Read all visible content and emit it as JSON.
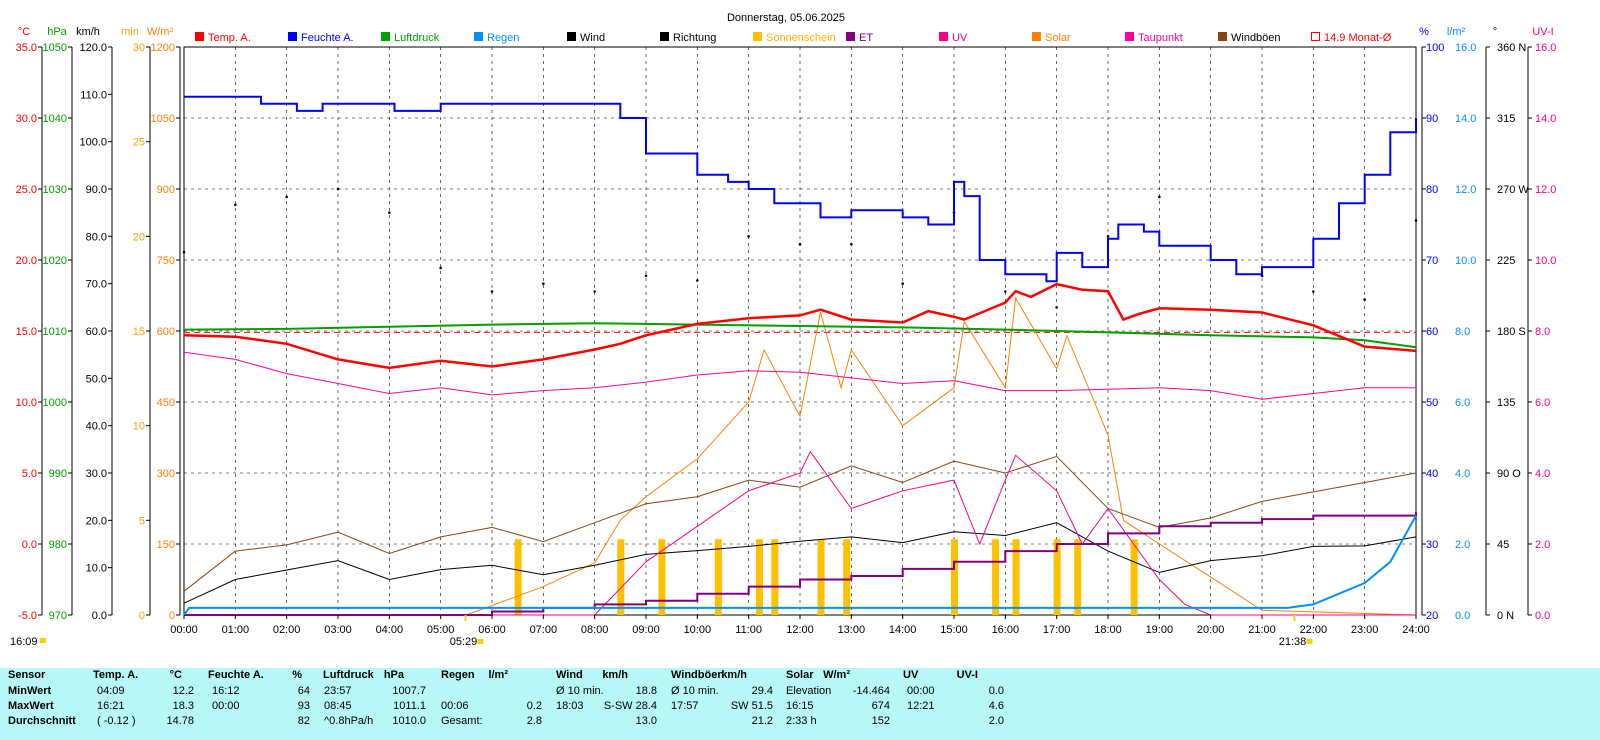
{
  "title": "Donnerstag, 05.06.2025",
  "legend": [
    {
      "label": "Temp. A.",
      "color": "#ff0000",
      "box": "filled"
    },
    {
      "label": "Feuchte A.",
      "color": "#0000ff",
      "box": "filled"
    },
    {
      "label": "Luftdruck",
      "color": "#00a000",
      "box": "filled"
    },
    {
      "label": "Regen",
      "color": "#0090ff",
      "box": "filled"
    },
    {
      "label": "Wind",
      "color": "#000000",
      "box": "filled"
    },
    {
      "label": "Richtung",
      "color": "#000000",
      "box": "filled"
    },
    {
      "label": "Sonnenschein",
      "color": "#ffc000",
      "box": "filled"
    },
    {
      "label": "ET",
      "color": "#800080",
      "box": "filled"
    },
    {
      "label": "UV",
      "color": "#ff0080",
      "box": "filled"
    },
    {
      "label": "Solar",
      "color": "#ff8000",
      "box": "filled"
    },
    {
      "label": "Taupunkt",
      "color": "#ff00a0",
      "box": "filled"
    },
    {
      "label": "Windböen",
      "color": "#8b4513",
      "box": "filled"
    },
    {
      "label": "14.9 Monat-Ø",
      "color": "#ff0000",
      "box": "outline"
    }
  ],
  "colors": {
    "temp": "#ff0000",
    "humidity": "#0000ff",
    "pressure": "#00a000",
    "rain": "#0090ff",
    "wind": "#000000",
    "gust": "#8b4513",
    "sun": "#ffc000",
    "et": "#800080",
    "uv": "#ff0080",
    "solar": "#ff8000",
    "dew": "#ff00a0",
    "grid": "#000000",
    "stats_bg": "#b8f7f7"
  },
  "left_axes": [
    {
      "unit": "°C",
      "color": "#ff0000",
      "ticks": [
        "35.0",
        "30.0",
        "25.0",
        "20.0",
        "15.0",
        "10.0",
        "5.0",
        "0.0",
        "-5.0"
      ]
    },
    {
      "unit": "hPa",
      "color": "#00a000",
      "ticks": [
        "1050",
        "1040",
        "1030",
        "1020",
        "1010",
        "1000",
        "990",
        "980",
        "970"
      ]
    },
    {
      "unit": "km/h",
      "color": "#000000",
      "ticks": [
        "120.0",
        "110.0",
        "100.0",
        "90.0",
        "80.0",
        "70.0",
        "60.0",
        "50.0",
        "40.0",
        "30.0",
        "20.0",
        "10.0",
        "0.0"
      ]
    },
    {
      "unit": "min",
      "color": "#ffa000",
      "ticks": [
        "30",
        "25",
        "20",
        "15",
        "10",
        "5",
        "0"
      ]
    },
    {
      "unit": "W/m²",
      "color": "#ff8000",
      "ticks": [
        "1200",
        "1050",
        "900",
        "750",
        "600",
        "450",
        "300",
        "150",
        "0"
      ]
    }
  ],
  "right_axes": [
    {
      "unit": "%",
      "color": "#0000ff",
      "ticks": [
        "100",
        "90",
        "80",
        "70",
        "60",
        "50",
        "40",
        "30",
        "20"
      ]
    },
    {
      "unit": "l/m²",
      "color": "#0090ff",
      "ticks": [
        "16.0",
        "14.0",
        "12.0",
        "10.0",
        "8.0",
        "6.0",
        "4.0",
        "2.0",
        "0.0"
      ]
    },
    {
      "unit": "°",
      "color": "#000000",
      "ticks": [
        "360 N",
        "315",
        "270 W",
        "225",
        "180 S",
        "135",
        "90 O",
        "45",
        "0 N"
      ]
    },
    {
      "unit": "UV-I",
      "color": "#ff0080",
      "ticks": [
        "16.0",
        "14.0",
        "12.0",
        "10.0",
        "8.0",
        "6.0",
        "4.0",
        "2.0",
        "0.0"
      ]
    }
  ],
  "x_ticks": [
    "00:00",
    "01:00",
    "02:00",
    "03:00",
    "04:00",
    "05:00",
    "06:00",
    "07:00",
    "08:00",
    "09:00",
    "10:00",
    "11:00",
    "12:00",
    "13:00",
    "14:00",
    "15:00",
    "16:00",
    "17:00",
    "18:00",
    "19:00",
    "20:00",
    "21:00",
    "22:00",
    "23:00",
    "24:00"
  ],
  "sunrise": "05:29",
  "sunset": "21:38",
  "last_update": "16:09",
  "chart_data": {
    "type": "line",
    "title": "Donnerstag, 05.06.2025",
    "x_range": [
      "00:00",
      "24:00"
    ],
    "grid": true,
    "legend_position": "top",
    "monthly_mean_temp": 14.9,
    "series": [
      {
        "name": "Temp. A.",
        "unit": "°C",
        "x": [
          0,
          1,
          2,
          3,
          4,
          5,
          6,
          7,
          8,
          8.5,
          9,
          10,
          11,
          12,
          12.4,
          13,
          14,
          14.5,
          15,
          15.2,
          16,
          16.2,
          16.5,
          17,
          17.5,
          18,
          18.3,
          18.6,
          19,
          20,
          21,
          22,
          23,
          24
        ],
        "y": [
          14.7,
          14.6,
          14.1,
          13.0,
          12.4,
          12.9,
          12.5,
          13.0,
          13.7,
          14.1,
          14.7,
          15.5,
          15.9,
          16.1,
          16.5,
          15.8,
          15.6,
          16.4,
          16.0,
          15.8,
          17.0,
          17.8,
          17.4,
          18.3,
          17.9,
          17.8,
          15.8,
          16.2,
          16.6,
          16.5,
          16.3,
          15.4,
          13.9,
          13.6
        ]
      },
      {
        "name": "Feuchte A.",
        "unit": "%",
        "x": [
          0,
          1,
          1.5,
          2,
          2.2,
          2.7,
          3,
          4,
          4.1,
          5,
          6,
          7,
          8,
          8.5,
          9,
          10,
          10.6,
          11,
          11.5,
          12,
          12.4,
          13,
          14,
          14.5,
          15,
          15.2,
          15.5,
          16,
          16.3,
          16.8,
          17,
          17.5,
          18,
          18.2,
          18.7,
          19,
          20,
          20.5,
          21,
          22,
          22.5,
          23,
          23.5,
          24
        ],
        "y": [
          93,
          93,
          92,
          92,
          91,
          92,
          92,
          92,
          91,
          92,
          92,
          92,
          92,
          90,
          85,
          82,
          81,
          80,
          78,
          78,
          76,
          77,
          76,
          75,
          81,
          79,
          70,
          68,
          68,
          67,
          71,
          69,
          73,
          75,
          74,
          72,
          70,
          68,
          69,
          73,
          78,
          82,
          88,
          90
        ]
      },
      {
        "name": "Luftdruck",
        "unit": "hPa",
        "x": [
          0,
          2,
          4,
          6,
          8,
          10,
          12,
          14,
          16,
          18,
          20,
          22,
          23,
          24
        ],
        "y": [
          1010.2,
          1010.3,
          1010.6,
          1010.9,
          1011.1,
          1010.9,
          1010.7,
          1010.5,
          1010.2,
          1009.8,
          1009.4,
          1009.1,
          1008.7,
          1007.7
        ]
      },
      {
        "name": "Regen",
        "unit": "l/m²",
        "x": [
          0,
          0.1,
          21.5,
          22,
          22.5,
          23,
          23.5,
          24
        ],
        "y": [
          0,
          0.2,
          0.2,
          0.3,
          0.6,
          0.9,
          1.5,
          2.8
        ]
      },
      {
        "name": "Wind",
        "unit": "km/h",
        "x": [
          0,
          1,
          2,
          3,
          4,
          5,
          6,
          7,
          8,
          9,
          10,
          11,
          12,
          13,
          14,
          15,
          16,
          17,
          18,
          19,
          20,
          21,
          22,
          23,
          24
        ],
        "y": [
          2.5,
          7.5,
          9.5,
          11.5,
          7.5,
          9.6,
          10.5,
          8.5,
          10.5,
          12.8,
          13.6,
          14.5,
          15.6,
          16.5,
          15.3,
          17.6,
          16.8,
          19.5,
          13.5,
          9.0,
          11.5,
          12.5,
          14.5,
          14.6,
          16.5
        ]
      },
      {
        "name": "Windböen",
        "unit": "km/h",
        "x": [
          0,
          1,
          2,
          3,
          4,
          5,
          6,
          7,
          8,
          9,
          10,
          11,
          12,
          13,
          14,
          15,
          16,
          17,
          18,
          19,
          20,
          21,
          22,
          23,
          24
        ],
        "y": [
          5.0,
          13.5,
          14.8,
          17.5,
          13.0,
          16.5,
          18.5,
          15.5,
          19.5,
          23.5,
          25.0,
          28.5,
          27.0,
          31.5,
          28.0,
          32.5,
          30.0,
          33.5,
          22.5,
          18.5,
          20.5,
          24.0,
          26.0,
          28.0,
          30.0
        ]
      },
      {
        "name": "Richtung",
        "unit": "°",
        "x": [
          0,
          1,
          2,
          3,
          4,
          5,
          6,
          7,
          8,
          9,
          10,
          11,
          12,
          13,
          14,
          15,
          16,
          17,
          18,
          19,
          20,
          21,
          22,
          23,
          24
        ],
        "y": [
          230,
          260,
          265,
          270,
          255,
          220,
          205,
          210,
          205,
          215,
          212,
          240,
          235,
          235,
          210,
          255,
          205,
          195,
          240,
          265,
          225,
          215,
          205,
          200,
          250
        ]
      },
      {
        "name": "Sonnenschein",
        "unit": "min",
        "x": [
          6.5,
          8.5,
          9.3,
          10.4,
          11.2,
          11.5,
          12.4,
          12.9,
          15.0,
          15.8,
          16.2,
          17.0,
          17.4,
          18.5
        ],
        "y": [
          4,
          4,
          4,
          4,
          4,
          4,
          4,
          4,
          4,
          4,
          4,
          4,
          4,
          4
        ]
      },
      {
        "name": "ET",
        "unit": "l/m²",
        "x": [
          0,
          5,
          6,
          7,
          8,
          9,
          10,
          11,
          12,
          13,
          14,
          15,
          16,
          17,
          18,
          19,
          20,
          21,
          22,
          23,
          24
        ],
        "y": [
          0,
          0,
          0.1,
          0.2,
          0.3,
          0.4,
          0.6,
          0.8,
          1.0,
          1.1,
          1.3,
          1.5,
          1.8,
          2.0,
          2.3,
          2.5,
          2.6,
          2.7,
          2.8,
          2.8,
          2.9
        ]
      },
      {
        "name": "UV",
        "unit": "UV-I",
        "x": [
          0,
          8,
          9,
          10,
          11,
          12,
          12.2,
          13,
          14,
          15,
          15.5,
          16,
          16.2,
          17,
          17.5,
          18,
          19,
          19.5,
          20,
          24
        ],
        "y": [
          0,
          0,
          1.5,
          2.5,
          3.5,
          4.0,
          4.6,
          3.0,
          3.5,
          3.8,
          2.0,
          3.8,
          4.5,
          3.5,
          2.0,
          3.0,
          1.0,
          0.3,
          0,
          0
        ]
      },
      {
        "name": "Solar",
        "unit": "W/m²",
        "x": [
          0,
          5.5,
          6,
          7,
          8,
          8.5,
          9,
          10,
          11,
          11.3,
          12,
          12.4,
          12.8,
          13,
          14,
          15,
          15.2,
          16,
          16.2,
          17,
          17.2,
          18,
          18.3,
          19,
          20,
          21,
          24
        ],
        "y": [
          0,
          0,
          20,
          60,
          110,
          200,
          250,
          330,
          450,
          560,
          420,
          640,
          480,
          560,
          400,
          480,
          620,
          480,
          670,
          520,
          590,
          380,
          200,
          150,
          80,
          10,
          0
        ]
      },
      {
        "name": "Taupunkt",
        "unit": "°C",
        "x": [
          0,
          1,
          2,
          3,
          4,
          5,
          6,
          7,
          8,
          9,
          10,
          11,
          12,
          13,
          14,
          15,
          16,
          17,
          18,
          19,
          20,
          21,
          22,
          23,
          24
        ],
        "y": [
          13.5,
          13.0,
          12.0,
          11.3,
          10.6,
          11.0,
          10.5,
          10.8,
          11.0,
          11.4,
          11.9,
          12.2,
          12.1,
          11.7,
          11.3,
          11.5,
          10.8,
          10.8,
          10.9,
          11.0,
          10.8,
          10.2,
          10.6,
          11.0,
          11.0
        ]
      }
    ]
  },
  "stats": {
    "headers": [
      "Sensor",
      "Temp. A.",
      "°C",
      "Feuchte A.",
      "%",
      "Luftdruck",
      "hPa",
      "Regen",
      "l/m²",
      "Wind",
      "km/h",
      "Windböen",
      "km/h",
      "Solar",
      "W/m²",
      "UV",
      "UV-I"
    ],
    "row_labels": [
      "MinWert",
      "MaxWert",
      "Durchschnitt"
    ],
    "temp_time": [
      "04:09",
      "16:21",
      "( -0.12 )"
    ],
    "temp_val": [
      "12.2",
      "18.3",
      "14.78"
    ],
    "hum_time": [
      "16:12",
      "00:00",
      ""
    ],
    "hum_val": [
      "64",
      "93",
      "82"
    ],
    "press_time": [
      "23:57",
      "08:45",
      "^0.8hPa/h"
    ],
    "press_val": [
      "1007.7",
      "1011.1",
      "1010.0"
    ],
    "rain_time": [
      "",
      "00:06",
      "Gesamt:"
    ],
    "rain_val": [
      "",
      "0.2",
      "2.8"
    ],
    "wind_time": [
      "Ø 10 min.",
      "18:03",
      ""
    ],
    "wind_val": [
      "18.8",
      "S-SW 28.4",
      "13.0"
    ],
    "gust_time": [
      "Ø 10 min.",
      "17:57",
      ""
    ],
    "gust_val": [
      "29.4",
      "SW 51.5",
      "21.2"
    ],
    "solar_time": [
      "Elevation",
      "16:15",
      "2:33 h"
    ],
    "solar_val": [
      "-14.464",
      "674",
      "152"
    ],
    "uv_time": [
      "00:00",
      "12:21",
      ""
    ],
    "uv_val": [
      "0.0",
      "4.6",
      "2.0"
    ]
  }
}
